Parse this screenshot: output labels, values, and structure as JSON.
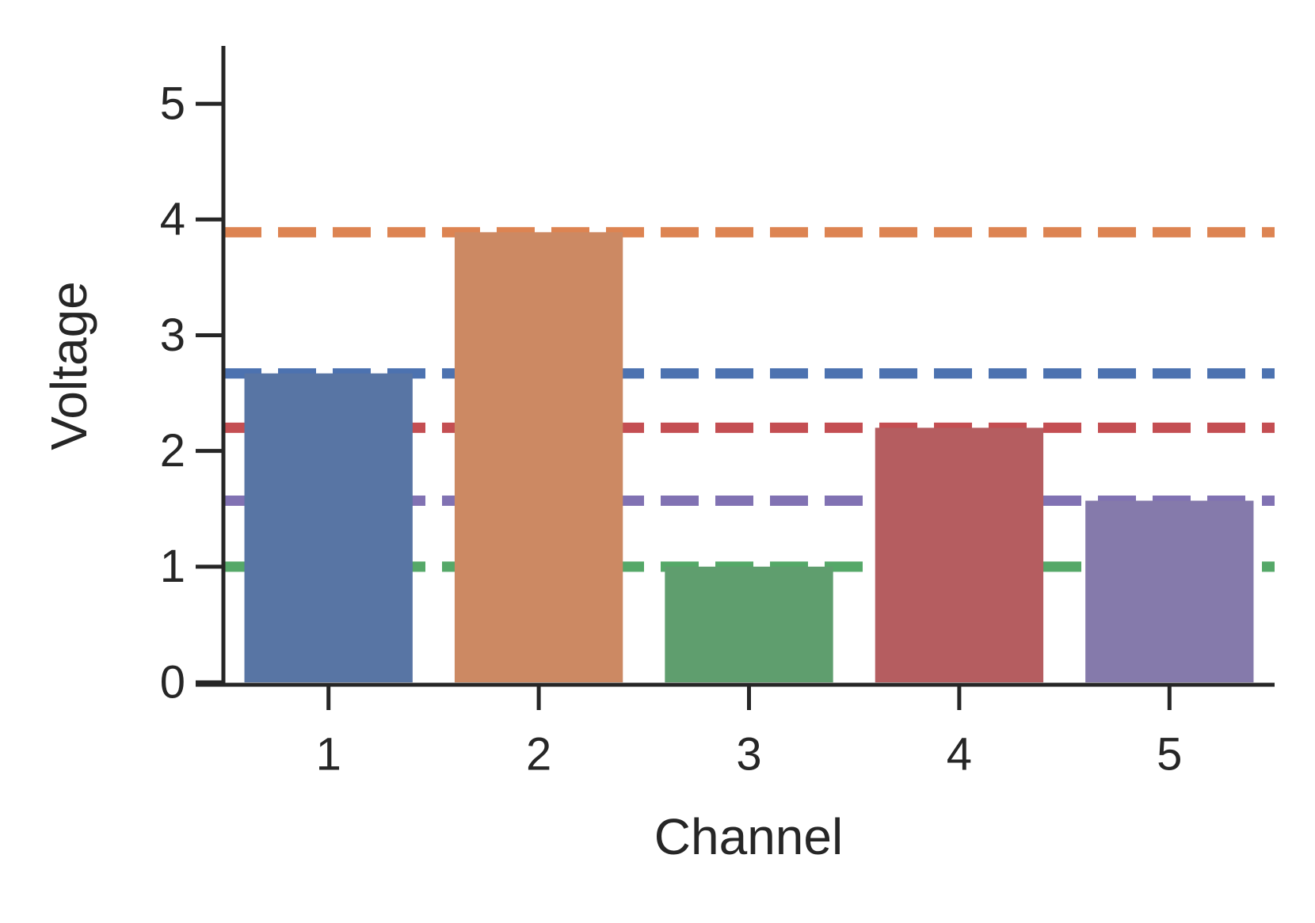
{
  "chart_data": {
    "type": "bar",
    "x_label": "Channel",
    "y_label": "Voltage",
    "categories": [
      "1",
      "2",
      "3",
      "4",
      "5"
    ],
    "values": [
      2.67,
      3.89,
      1.0,
      2.2,
      1.57
    ],
    "colors": [
      "#5875a4",
      "#cc8963",
      "#5f9e6e",
      "#b55d60",
      "#857aab"
    ],
    "line_colors": [
      "#4c72b0",
      "#dd8452",
      "#55a868",
      "#c44e52",
      "#8172b3"
    ],
    "ylim": [
      0,
      5.5
    ],
    "yticks": [
      0,
      1,
      2,
      3,
      4,
      5
    ]
  }
}
